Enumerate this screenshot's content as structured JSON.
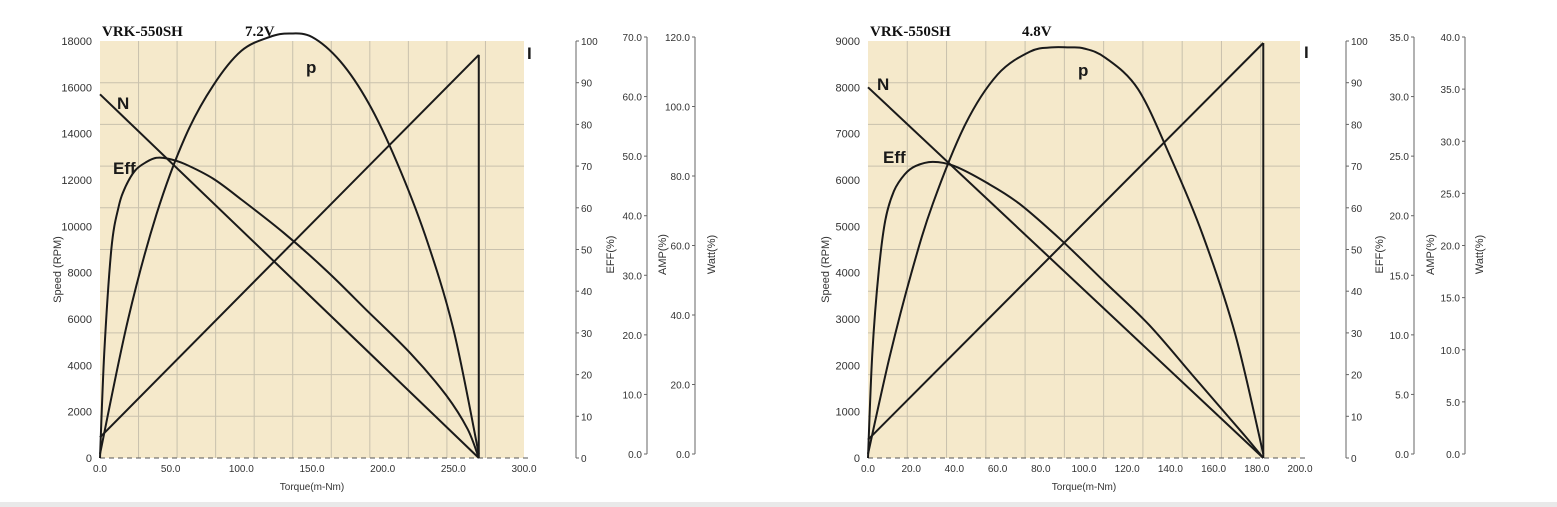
{
  "chart_data": [
    {
      "type": "line",
      "model": "VRK-550SH",
      "voltage": "7.2V",
      "xlabel": "Torque(m-Nm)",
      "xlim": [
        0,
        300
      ],
      "xticks": [
        "0.0",
        "50.0",
        "100.0",
        "150.0",
        "200.0",
        "250.0",
        "300.0"
      ],
      "axes": [
        {
          "label": "Speed (RPM)",
          "ticks": [
            "0",
            "2000",
            "4000",
            "6000",
            "8000",
            "10000",
            "12000",
            "14000",
            "16000",
            "18000"
          ]
        },
        {
          "label": "EFF(%)",
          "ticks": [
            "0",
            "10",
            "20",
            "30",
            "40",
            "50",
            "60",
            "70",
            "80",
            "90",
            "100"
          ]
        },
        {
          "label": "AMP(%)",
          "ticks": [
            "0.0",
            "10.0",
            "20.0",
            "30.0",
            "40.0",
            "50.0",
            "60.0",
            "70.0"
          ]
        },
        {
          "label": "Watt(%)",
          "ticks": [
            "0.0",
            "20.0",
            "40.0",
            "60.0",
            "80.0",
            "100.0",
            "120.0"
          ]
        }
      ],
      "curve_labels": {
        "speed": "N",
        "efficiency": "Eff",
        "power": "p",
        "current": "I"
      },
      "series": [
        {
          "name": "N",
          "x": [
            0,
            268
          ],
          "y": [
            15700,
            0
          ]
        },
        {
          "name": "I",
          "x": [
            0,
            268
          ],
          "y": [
            2.8,
            67.0
          ]
        },
        {
          "name": "Eff",
          "x": [
            0,
            3,
            8,
            13,
            18,
            25,
            33,
            40,
            48,
            60,
            80,
            100,
            130,
            160,
            190,
            220,
            245,
            260,
            268
          ],
          "y": [
            0,
            25,
            50,
            60,
            65,
            69,
            71,
            72,
            71.8,
            70.5,
            67,
            62,
            54,
            45,
            35,
            25,
            15,
            7,
            0
          ]
        },
        {
          "name": "p",
          "x": [
            0,
            20,
            40,
            60,
            80,
            100,
            120,
            134,
            150,
            170,
            190,
            210,
            230,
            250,
            268
          ],
          "y": [
            0,
            39,
            69,
            91,
            106,
            116,
            120,
            121,
            120,
            113,
            101,
            84,
            63,
            36,
            0
          ]
        }
      ],
      "background_color": "#f5e9cb",
      "line_color": "#1a1a1a"
    },
    {
      "type": "line",
      "model": "VRK-550SH",
      "voltage": "4.8V",
      "xlabel": "Torque(m-Nm)",
      "xlim": [
        0,
        200
      ],
      "xticks": [
        "0.0",
        "20.0",
        "40.0",
        "60.0",
        "80.0",
        "100.0",
        "120.0",
        "140.0",
        "160.0",
        "180.0",
        "200.0"
      ],
      "axes": [
        {
          "label": "Speed (RPM)",
          "ticks": [
            "0",
            "1000",
            "2000",
            "3000",
            "4000",
            "5000",
            "6000",
            "7000",
            "8000",
            "9000"
          ]
        },
        {
          "label": "EFF(%)",
          "ticks": [
            "0",
            "10",
            "20",
            "30",
            "40",
            "50",
            "60",
            "70",
            "80",
            "90",
            "100"
          ]
        },
        {
          "label": "AMP(%)",
          "ticks": [
            "0.0",
            "5.0",
            "10.0",
            "15.0",
            "20.0",
            "25.0",
            "30.0",
            "35.0"
          ]
        },
        {
          "label": "Watt(%)",
          "ticks": [
            "0.0",
            "5.0",
            "10.0",
            "15.0",
            "20.0",
            "25.0",
            "30.0",
            "35.0",
            "40.0"
          ]
        }
      ],
      "curve_labels": {
        "speed": "N",
        "efficiency": "Eff",
        "power": "p",
        "current": "I"
      },
      "series": [
        {
          "name": "N",
          "x": [
            0,
            183
          ],
          "y": [
            8000,
            0
          ]
        },
        {
          "name": "I",
          "x": [
            0,
            183
          ],
          "y": [
            1.2,
            34.5
          ]
        },
        {
          "name": "Eff",
          "x": [
            0,
            2,
            5,
            8,
            12,
            17,
            22,
            30,
            40,
            55,
            70,
            90,
            110,
            130,
            150,
            165,
            175,
            183
          ],
          "y": [
            0,
            25,
            45,
            57,
            64,
            68,
            70,
            71,
            70,
            66,
            61,
            52,
            42,
            32,
            20,
            11,
            5,
            0
          ]
        },
        {
          "name": "p",
          "x": [
            0,
            10,
            20,
            30,
            45,
            60,
            75,
            85,
            93,
            100,
            110,
            125,
            140,
            155,
            170,
            183
          ],
          "y": [
            0,
            9.3,
            17.3,
            24,
            31.6,
            36.4,
            38.6,
            39,
            39,
            38.9,
            38,
            35,
            28.5,
            21,
            11.5,
            0
          ]
        }
      ],
      "background_color": "#f5e9cb",
      "line_color": "#1a1a1a"
    }
  ]
}
